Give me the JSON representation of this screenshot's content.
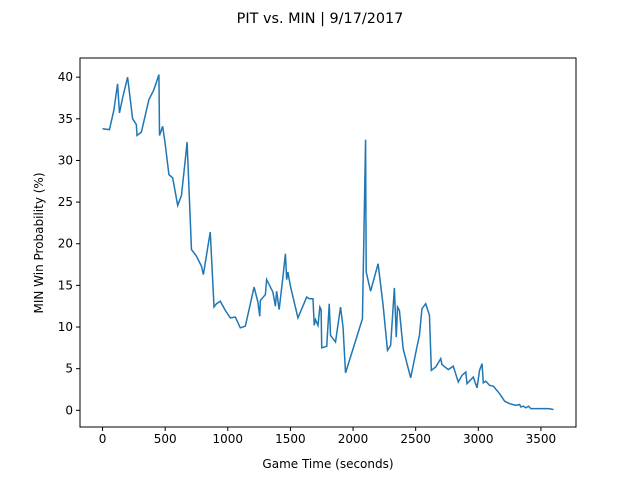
{
  "chart_data": {
    "type": "line",
    "title": "PIT vs. MIN | 9/17/2017",
    "x_label": "Game Time (seconds)",
    "y_label": "MIN Win Probability (%)",
    "x": [
      0,
      55,
      90,
      120,
      135,
      160,
      200,
      240,
      270,
      275,
      310,
      370,
      410,
      450,
      455,
      480,
      500,
      530,
      560,
      600,
      630,
      660,
      675,
      710,
      750,
      790,
      805,
      850,
      860,
      890,
      910,
      940,
      980,
      1020,
      1060,
      1100,
      1140,
      1210,
      1240,
      1255,
      1260,
      1300,
      1310,
      1340,
      1360,
      1380,
      1390,
      1410,
      1440,
      1460,
      1470,
      1480,
      1500,
      1560,
      1630,
      1650,
      1680,
      1690,
      1700,
      1720,
      1735,
      1745,
      1750,
      1790,
      1810,
      1820,
      1860,
      1900,
      1920,
      1940,
      2075,
      2100,
      2105,
      2140,
      2200,
      2240,
      2275,
      2300,
      2330,
      2345,
      2355,
      2370,
      2400,
      2460,
      2510,
      2530,
      2550,
      2580,
      2610,
      2625,
      2660,
      2700,
      2710,
      2760,
      2800,
      2840,
      2870,
      2900,
      2910,
      2960,
      2990,
      3010,
      3030,
      3040,
      3060,
      3090,
      3120,
      3170,
      3210,
      3250,
      3300,
      3330,
      3340,
      3360,
      3380,
      3400,
      3420,
      3450,
      3500,
      3560,
      3600
    ],
    "series": [
      {
        "name": "MIN",
        "color": "#1f77b4",
        "values": [
          33.8,
          33.7,
          36.0,
          39.2,
          35.7,
          37.5,
          40.0,
          35.0,
          34.3,
          33.0,
          33.4,
          37.3,
          38.5,
          40.3,
          33.0,
          34.1,
          32.0,
          28.3,
          27.9,
          24.6,
          25.8,
          30.0,
          32.2,
          19.3,
          18.5,
          17.3,
          16.3,
          20.5,
          21.4,
          12.4,
          12.8,
          13.1,
          12.0,
          11.1,
          11.2,
          9.9,
          10.1,
          14.8,
          13.0,
          11.3,
          13.2,
          13.9,
          15.7,
          14.8,
          14.2,
          12.5,
          14.3,
          12.1,
          16.0,
          18.8,
          15.7,
          16.6,
          14.9,
          11.1,
          13.6,
          13.4,
          13.4,
          10.2,
          10.9,
          10.2,
          12.4,
          12.1,
          7.5,
          7.7,
          12.8,
          9.0,
          8.2,
          12.4,
          10.0,
          4.5,
          11.0,
          32.5,
          16.6,
          14.3,
          17.6,
          12.6,
          7.2,
          7.8,
          14.7,
          8.8,
          12.4,
          12.0,
          7.4,
          3.9,
          7.6,
          9.0,
          12.2,
          12.8,
          11.4,
          4.8,
          5.2,
          6.2,
          5.5,
          4.9,
          5.3,
          3.4,
          4.2,
          4.6,
          3.2,
          4.0,
          2.7,
          4.8,
          5.6,
          3.3,
          3.5,
          3.0,
          2.9,
          2.0,
          1.1,
          0.8,
          0.6,
          0.7,
          0.4,
          0.5,
          0.3,
          0.5,
          0.2,
          0.2,
          0.2,
          0.2,
          0.1
        ]
      }
    ],
    "xlim": [
      -180,
      3780
    ],
    "ylim": [
      -2.0,
      42.3
    ],
    "xticks": [
      0,
      500,
      1000,
      1500,
      2000,
      2500,
      3000,
      3500
    ],
    "yticks": [
      0,
      5,
      10,
      15,
      20,
      25,
      30,
      35,
      40
    ]
  }
}
